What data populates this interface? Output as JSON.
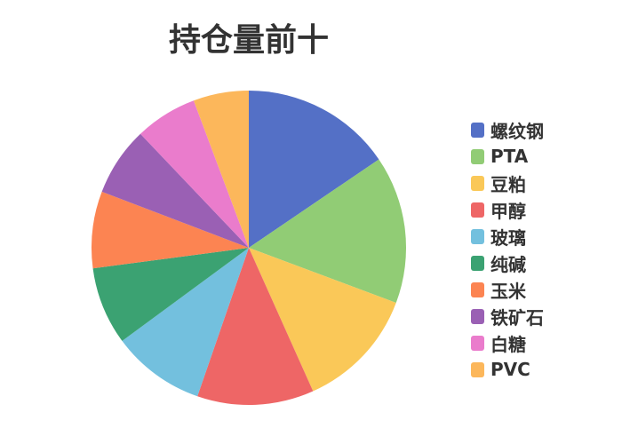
{
  "chart_data": {
    "type": "pie",
    "title": "持仓量前十",
    "legend_position": "right",
    "categories": [
      "螺纹钢",
      "PTA",
      "豆粕",
      "甲醇",
      "玻璃",
      "纯碱",
      "玉米",
      "铁矿石",
      "白糖",
      "PVC"
    ],
    "values": [
      15.5,
      15.2,
      12.6,
      12.0,
      9.6,
      8.0,
      7.9,
      7.1,
      6.4,
      5.7
    ],
    "colors": [
      "#5470c6",
      "#91cc75",
      "#fac858",
      "#ee6666",
      "#73c0de",
      "#3ba272",
      "#fc8452",
      "#9a60b4",
      "#ea7ccc",
      "#fcb75b"
    ]
  }
}
